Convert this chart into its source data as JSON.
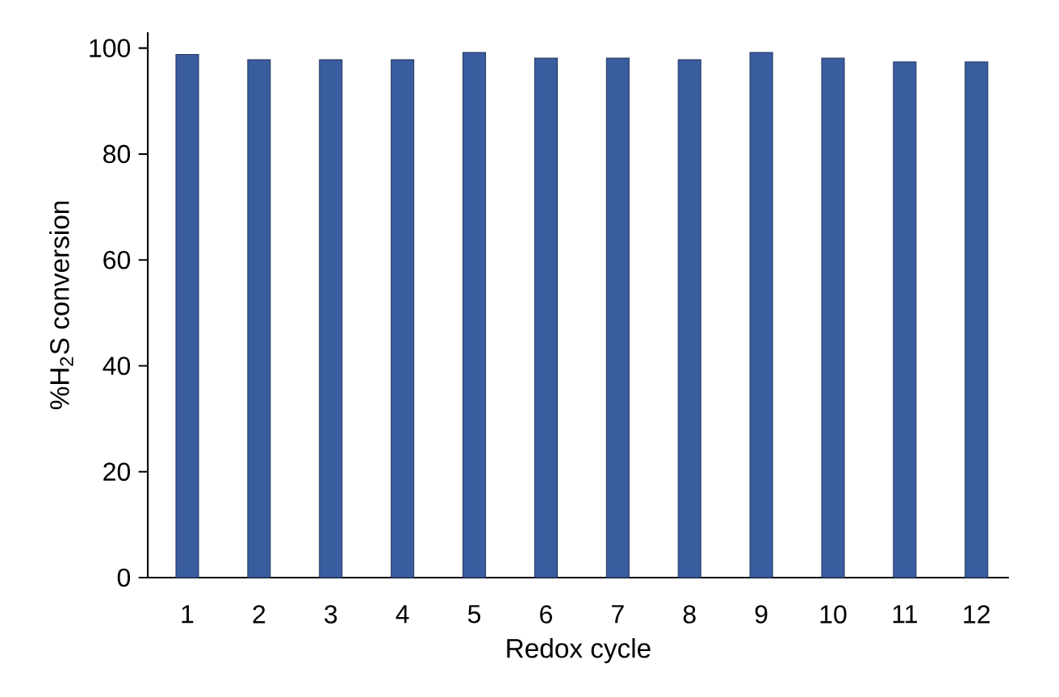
{
  "chart_data": {
    "type": "bar",
    "xlabel": "Redox cycle",
    "ylabel": "%H$_{2}$S conversion",
    "categories": [
      "1",
      "2",
      "3",
      "4",
      "5",
      "6",
      "7",
      "8",
      "9",
      "10",
      "11",
      "12"
    ],
    "values": [
      98.8,
      97.8,
      97.8,
      97.8,
      99.2,
      98.1,
      98.1,
      97.8,
      99.2,
      98.1,
      97.4,
      97.4
    ],
    "color": "#3a5da0",
    "ylim": [
      0,
      103
    ],
    "yticks": [
      0,
      20,
      40,
      60,
      80,
      100
    ],
    "grid": false
  }
}
